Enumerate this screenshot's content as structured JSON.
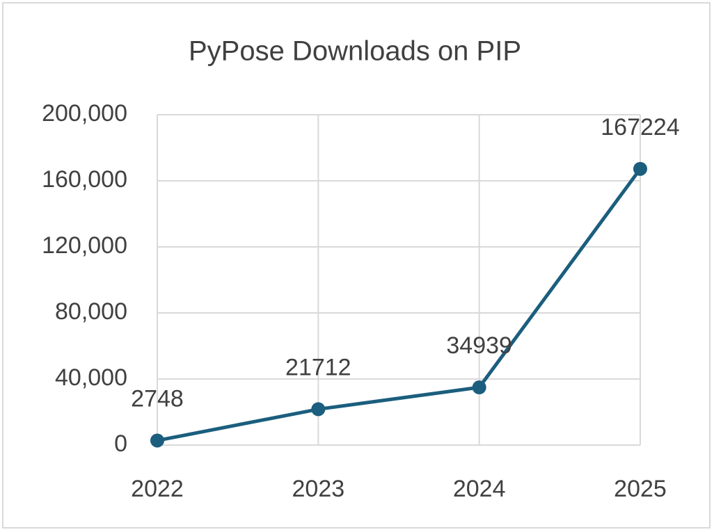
{
  "chart_data": {
    "type": "line",
    "title": "PyPose Downloads on PIP",
    "categories": [
      "2022",
      "2023",
      "2024",
      "2025"
    ],
    "values": [
      2748,
      21712,
      34939,
      167224
    ],
    "color": "#1b5e7e",
    "ylim": [
      0,
      200000
    ],
    "yticks": [
      0,
      {
        "value": 40000,
        "label": "40,000"
      },
      {
        "value": 80000,
        "label": "80,000"
      },
      {
        "value": 120000,
        "label": "120,000"
      },
      {
        "value": 160000,
        "label": "160,000"
      },
      {
        "value": 200000,
        "label": "200,000"
      }
    ],
    "grid": true
  }
}
